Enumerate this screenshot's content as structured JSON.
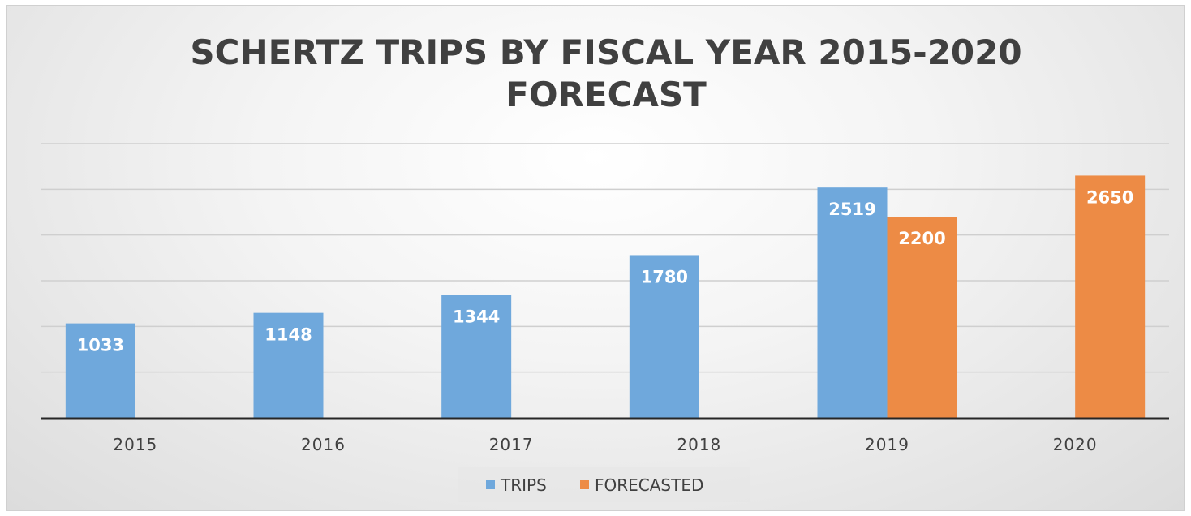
{
  "chart_data": {
    "type": "bar",
    "title": "SCHERTZ TRIPS BY FISCAL YEAR 2015-2020 FORECAST",
    "title_lines": [
      "SCHERTZ TRIPS BY FISCAL YEAR 2015-2020",
      "FORECAST"
    ],
    "categories": [
      "2015",
      "2016",
      "2017",
      "2018",
      "2019",
      "2020"
    ],
    "series": [
      {
        "name": "TRIPS",
        "color": "#6FA8DC",
        "values": [
          1033,
          1148,
          1344,
          1780,
          2519,
          null
        ]
      },
      {
        "name": "FORECASTED",
        "color": "#ED8B45",
        "values": [
          null,
          null,
          null,
          null,
          2200,
          2650
        ]
      }
    ],
    "xlabel": "",
    "ylabel": "",
    "ylim": [
      0,
      3000
    ],
    "grid": true,
    "legend": "bottom"
  }
}
